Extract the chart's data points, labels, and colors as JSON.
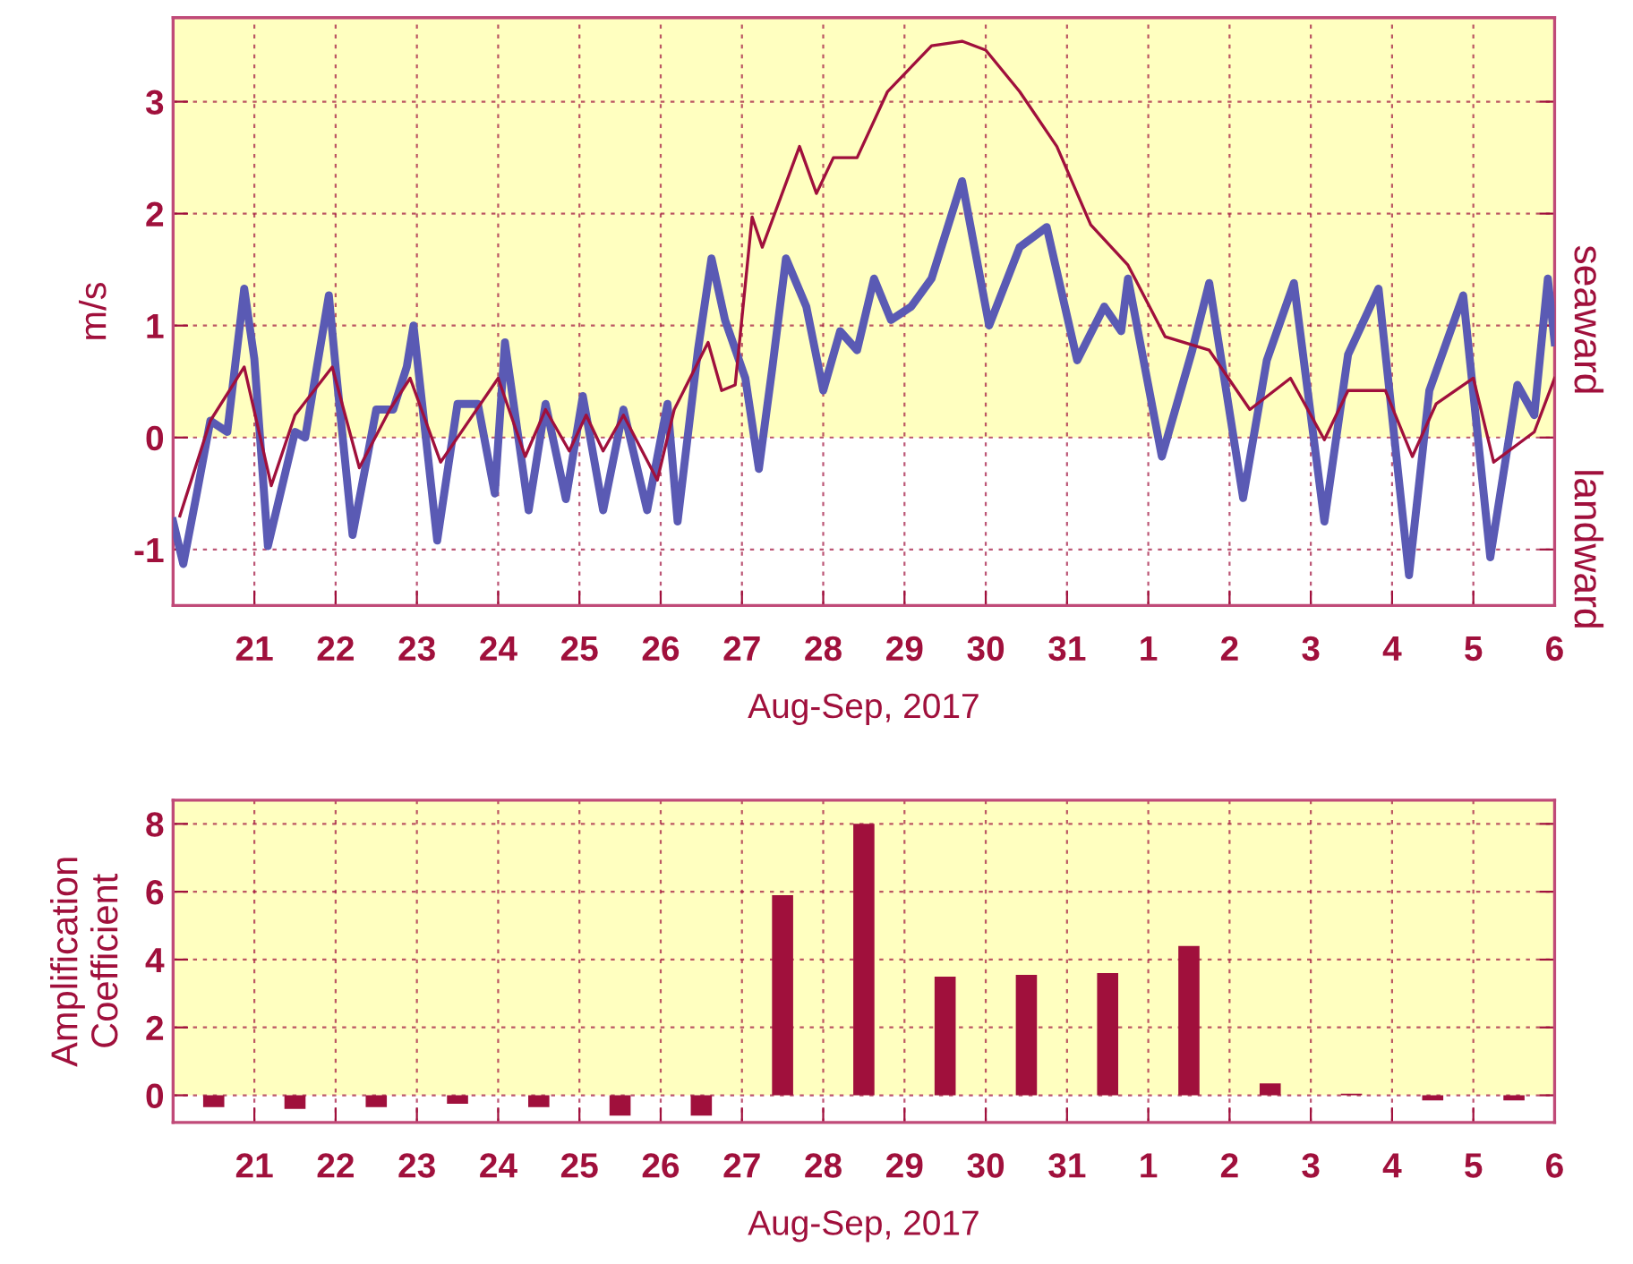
{
  "chart_data": [
    {
      "type": "line",
      "ylabel": "m/s",
      "xlabel": "Aug-Sep, 2017",
      "annotations": [
        "seaward",
        "landward"
      ],
      "xlim": [
        "2017-08-20",
        "2017-09-06"
      ],
      "ylim": [
        -1.5,
        3.75
      ],
      "yticks": [
        -1,
        0,
        1,
        2,
        3
      ],
      "xticks": [
        {
          "value": "2017-08-21",
          "label": "21"
        },
        {
          "value": "2017-08-22",
          "label": "22"
        },
        {
          "value": "2017-08-23",
          "label": "23"
        },
        {
          "value": "2017-08-24",
          "label": "24"
        },
        {
          "value": "2017-08-25",
          "label": "25"
        },
        {
          "value": "2017-08-26",
          "label": "26"
        },
        {
          "value": "2017-08-27",
          "label": "27"
        },
        {
          "value": "2017-08-28",
          "label": "28"
        },
        {
          "value": "2017-08-29",
          "label": "29"
        },
        {
          "value": "2017-08-30",
          "label": "30"
        },
        {
          "value": "2017-08-31",
          "label": "31"
        },
        {
          "value": "2017-09-01",
          "label": "1"
        },
        {
          "value": "2017-09-02",
          "label": "2"
        },
        {
          "value": "2017-09-03",
          "label": "3"
        },
        {
          "value": "2017-09-04",
          "label": "4"
        },
        {
          "value": "2017-09-05",
          "label": "5"
        },
        {
          "value": "2017-09-06",
          "label": "6"
        }
      ],
      "grid": true,
      "bands": [
        {
          "axis": "y",
          "from": 0,
          "to": 3.75,
          "color": "#ffffc0"
        }
      ],
      "series": [
        {
          "color": "#5a5ab4",
          "x": [
            "2017-08-20T00:00",
            "2017-08-20T03:00",
            "2017-08-20T07:00",
            "2017-08-20T11:00",
            "2017-08-20T16:00",
            "2017-08-20T21:00",
            "2017-08-21T00:00",
            "2017-08-21T04:00",
            "2017-08-21T12:00",
            "2017-08-21T15:00",
            "2017-08-21T22:00",
            "2017-08-22T00:00",
            "2017-08-22T05:00",
            "2017-08-22T12:00",
            "2017-08-22T17:00",
            "2017-08-22T21:00",
            "2017-08-22T23:00",
            "2017-08-23T06:00",
            "2017-08-23T12:00",
            "2017-08-23T18:00",
            "2017-08-23T23:00",
            "2017-08-24T02:00",
            "2017-08-24T09:00",
            "2017-08-24T14:00",
            "2017-08-24T20:00",
            "2017-08-25T01:00",
            "2017-08-25T07:00",
            "2017-08-25T13:00",
            "2017-08-25T20:00",
            "2017-08-26T02:00",
            "2017-08-26T05:00",
            "2017-08-26T11:00",
            "2017-08-26T15:00",
            "2017-08-26T19:00",
            "2017-08-27T01:00",
            "2017-08-27T05:00",
            "2017-08-27T09:00",
            "2017-08-27T13:00",
            "2017-08-27T19:00",
            "2017-08-28T00:00",
            "2017-08-28T05:00",
            "2017-08-28T10:00",
            "2017-08-28T15:00",
            "2017-08-28T20:00",
            "2017-08-29T02:00",
            "2017-08-29T08:00",
            "2017-08-29T17:00",
            "2017-08-30T01:00",
            "2017-08-30T10:00",
            "2017-08-30T18:00",
            "2017-08-31T03:00",
            "2017-08-31T11:00",
            "2017-08-31T16:00",
            "2017-08-31T18:00",
            "2017-09-01T04:00",
            "2017-09-01T13:00",
            "2017-09-01T18:00",
            "2017-09-02T04:00",
            "2017-09-02T11:00",
            "2017-09-02T19:00",
            "2017-09-03T04:00",
            "2017-09-03T11:00",
            "2017-09-03T20:00",
            "2017-09-04T05:00",
            "2017-09-04T11:00",
            "2017-09-04T21:00",
            "2017-09-05T05:00",
            "2017-09-05T13:00",
            "2017-09-05T18:00",
            "2017-09-05T22:00",
            "2017-09-06T00:00"
          ],
          "values": [
            -0.75,
            -1.13,
            -0.5,
            0.15,
            0.05,
            1.33,
            0.7,
            -0.97,
            0.05,
            0,
            1.27,
            0.63,
            -0.87,
            0.25,
            0.25,
            0.63,
            1.0,
            -0.92,
            0.3,
            0.3,
            -0.5,
            0.85,
            -0.65,
            0.3,
            -0.55,
            0.37,
            -0.65,
            0.25,
            -0.65,
            0.3,
            -0.75,
            0.78,
            1.6,
            1.05,
            0.53,
            -0.28,
            0.63,
            1.6,
            1.17,
            0.42,
            0.95,
            0.78,
            1.42,
            1.05,
            1.17,
            1.42,
            2.29,
            1.0,
            1.7,
            1.88,
            0.69,
            1.17,
            0.95,
            1.42,
            -0.17,
            0.78,
            1.38,
            -0.54,
            0.69,
            1.38,
            -0.75,
            0.74,
            1.33,
            -1.23,
            0.42,
            1.27,
            -1.07,
            0.47,
            0.2,
            1.42,
            0.85
          ]
        },
        {
          "color": "#a0103c",
          "x": [
            "2017-08-20T02:00",
            "2017-08-20T11:00",
            "2017-08-20T21:00",
            "2017-08-21T05:00",
            "2017-08-21T12:00",
            "2017-08-21T23:00",
            "2017-08-22T07:00",
            "2017-08-22T16:00",
            "2017-08-22T22:00",
            "2017-08-23T07:00",
            "2017-08-24T00:00",
            "2017-08-24T08:00",
            "2017-08-24T14:00",
            "2017-08-24T21:00",
            "2017-08-25T02:00",
            "2017-08-25T07:00",
            "2017-08-25T13:00",
            "2017-08-25T23:00",
            "2017-08-26T04:00",
            "2017-08-26T14:00",
            "2017-08-26T18:00",
            "2017-08-26T22:00",
            "2017-08-27T03:00",
            "2017-08-27T06:00",
            "2017-08-27T17:00",
            "2017-08-27T22:00",
            "2017-08-28T03:00",
            "2017-08-28T10:00",
            "2017-08-28T19:00",
            "2017-08-29T08:00",
            "2017-08-29T17:00",
            "2017-08-30T00:00",
            "2017-08-30T10:00",
            "2017-08-30T21:00",
            "2017-08-31T07:00",
            "2017-08-31T18:00",
            "2017-09-01T05:00",
            "2017-09-01T18:00",
            "2017-09-02T06:00",
            "2017-09-02T18:00",
            "2017-09-03T04:00",
            "2017-09-03T11:00",
            "2017-09-03T22:00",
            "2017-09-04T06:00",
            "2017-09-04T13:00",
            "2017-09-05T00:00",
            "2017-09-05T06:00",
            "2017-09-05T18:00",
            "2017-09-06T00:00"
          ],
          "values": [
            -0.7,
            0.15,
            0.63,
            -0.43,
            0.2,
            0.63,
            -0.27,
            0.25,
            0.53,
            -0.22,
            0.53,
            -0.17,
            0.25,
            -0.12,
            0.2,
            -0.12,
            0.2,
            -0.38,
            0.25,
            0.85,
            0.42,
            0.47,
            1.97,
            1.7,
            2.6,
            2.18,
            2.5,
            2.5,
            3.09,
            3.5,
            3.54,
            3.46,
            3.09,
            2.6,
            1.9,
            1.54,
            0.9,
            0.78,
            0.25,
            0.53,
            -0.02,
            0.42,
            0.42,
            -0.17,
            0.3,
            0.53,
            -0.22,
            0.05,
            0.53
          ]
        }
      ]
    },
    {
      "type": "bar",
      "ylabel": "Amplification\nCoefficient",
      "xlabel": "Aug-Sep, 2017",
      "xlim": [
        "2017-08-20",
        "2017-09-06"
      ],
      "ylim": [
        -0.8,
        8.7
      ],
      "yticks": [
        0,
        2,
        4,
        6,
        8
      ],
      "xticks": [
        {
          "value": "2017-08-21",
          "label": "21"
        },
        {
          "value": "2017-08-22",
          "label": "22"
        },
        {
          "value": "2017-08-23",
          "label": "23"
        },
        {
          "value": "2017-08-24",
          "label": "24"
        },
        {
          "value": "2017-08-25",
          "label": "25"
        },
        {
          "value": "2017-08-26",
          "label": "26"
        },
        {
          "value": "2017-08-27",
          "label": "27"
        },
        {
          "value": "2017-08-28",
          "label": "28"
        },
        {
          "value": "2017-08-29",
          "label": "29"
        },
        {
          "value": "2017-08-30",
          "label": "30"
        },
        {
          "value": "2017-08-31",
          "label": "31"
        },
        {
          "value": "2017-09-01",
          "label": "1"
        },
        {
          "value": "2017-09-02",
          "label": "2"
        },
        {
          "value": "2017-09-03",
          "label": "3"
        },
        {
          "value": "2017-09-04",
          "label": "4"
        },
        {
          "value": "2017-09-05",
          "label": "5"
        },
        {
          "value": "2017-09-06",
          "label": "6"
        }
      ],
      "grid": true,
      "bands": [
        {
          "axis": "y",
          "from": 0,
          "to": 8.7,
          "color": "#ffffc0"
        }
      ],
      "series": [
        {
          "color": "#a0103c",
          "x": [
            "2017-08-20T12:00",
            "2017-08-21T12:00",
            "2017-08-22T12:00",
            "2017-08-23T12:00",
            "2017-08-24T12:00",
            "2017-08-25T12:00",
            "2017-08-26T12:00",
            "2017-08-27T12:00",
            "2017-08-28T12:00",
            "2017-08-29T12:00",
            "2017-08-30T12:00",
            "2017-08-31T12:00",
            "2017-09-01T12:00",
            "2017-09-02T12:00",
            "2017-09-03T12:00",
            "2017-09-04T12:00",
            "2017-09-05T12:00"
          ],
          "values": [
            -0.35,
            -0.4,
            -0.35,
            -0.25,
            -0.35,
            -0.6,
            -0.6,
            5.9,
            8.0,
            3.5,
            3.55,
            3.6,
            4.4,
            0.35,
            0.05,
            -0.15,
            -0.15
          ]
        }
      ]
    }
  ]
}
